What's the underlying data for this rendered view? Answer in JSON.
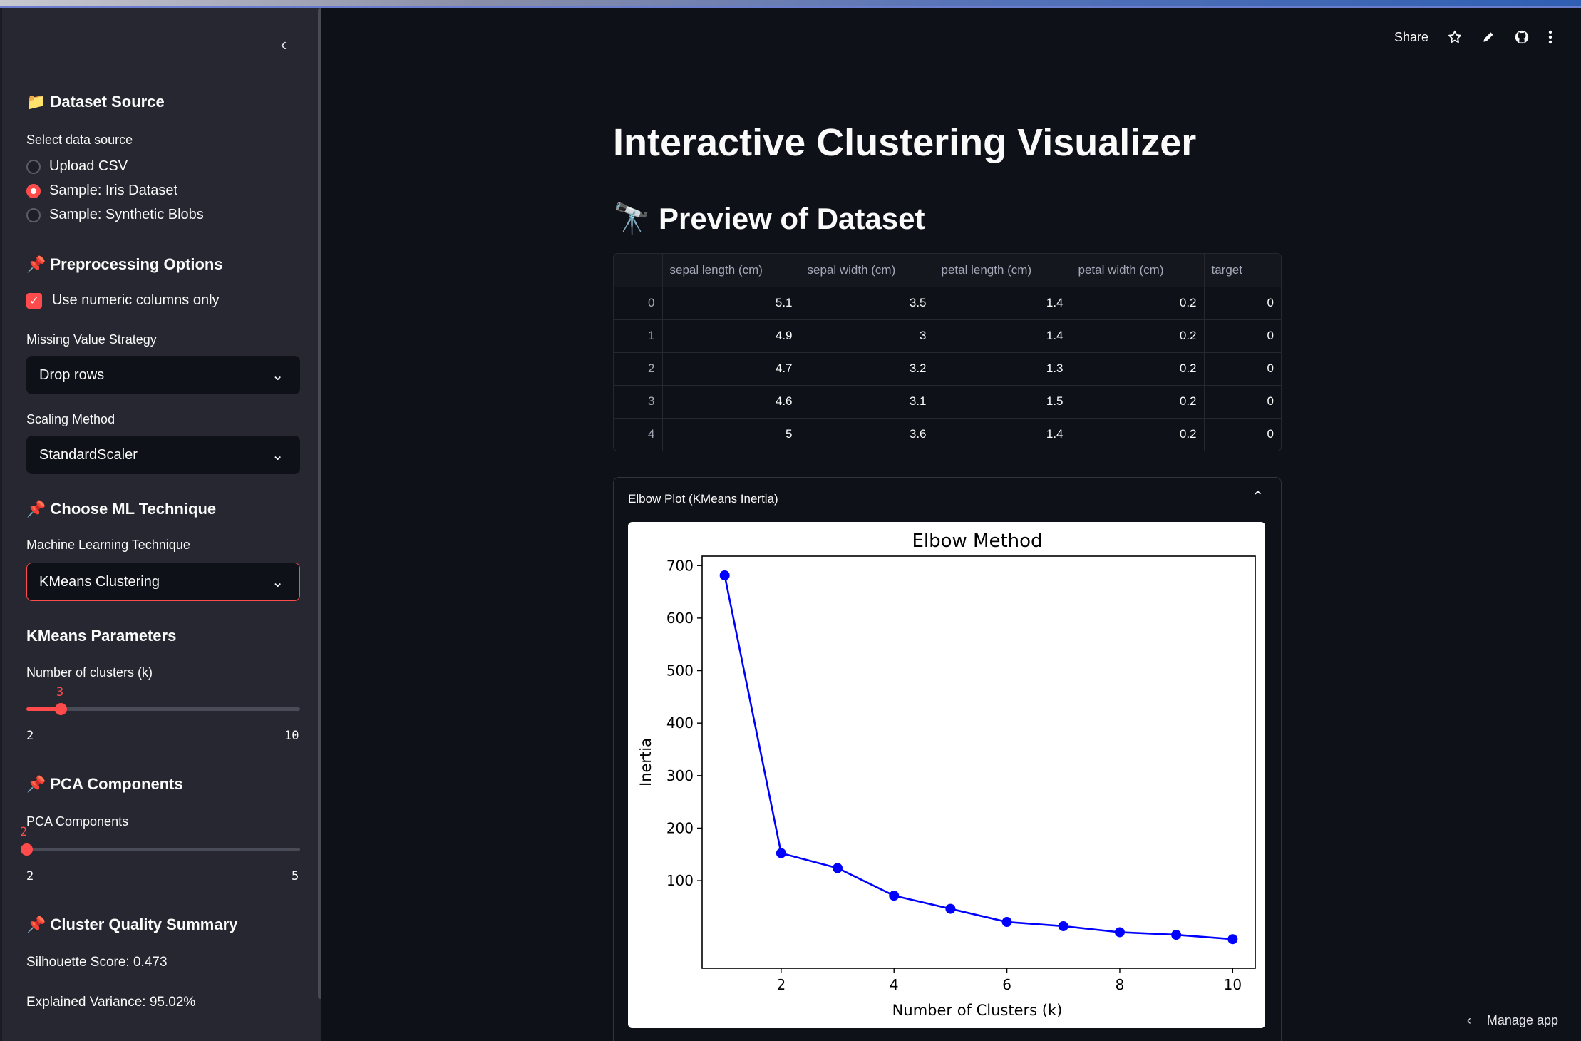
{
  "sidebar": {
    "dataset_heading": "📁 Dataset Source",
    "data_source_label": "Select data source",
    "data_source_options": [
      "Upload CSV",
      "Sample: Iris Dataset",
      "Sample: Synthetic Blobs"
    ],
    "data_source_selected": "Sample: Iris Dataset",
    "preprocessing_heading": "📌 Preprocessing Options",
    "numeric_only_label": "Use numeric columns only",
    "numeric_only_checked": true,
    "missing_label": "Missing Value Strategy",
    "missing_value": "Drop rows",
    "scaling_label": "Scaling Method",
    "scaling_value": "StandardScaler",
    "ml_heading": "📌 Choose ML Technique",
    "ml_label": "Machine Learning Technique",
    "ml_value": "KMeans Clustering",
    "kmeans_heading": "KMeans Parameters",
    "k_label": "Number of clusters (k)",
    "k_value": "3",
    "k_min": "2",
    "k_max": "10",
    "pca_heading": "📌 PCA Components",
    "pca_label": "PCA Components",
    "pca_value": "2",
    "pca_min": "2",
    "pca_max": "5",
    "quality_heading": "📌 Cluster Quality Summary",
    "silhouette": "Silhouette Score: 0.473",
    "variance": "Explained Variance: 95.02%"
  },
  "toolbar": {
    "share": "Share"
  },
  "main": {
    "title": "Interactive Clustering Visualizer",
    "preview_heading": "🔭 Preview of Dataset",
    "table": {
      "columns": [
        "",
        "sepal length (cm)",
        "sepal width (cm)",
        "petal length (cm)",
        "petal width (cm)",
        "target"
      ],
      "rows": [
        [
          "0",
          "5.1",
          "3.5",
          "1.4",
          "0.2",
          "0"
        ],
        [
          "1",
          "4.9",
          "3",
          "1.4",
          "0.2",
          "0"
        ],
        [
          "2",
          "4.7",
          "3.2",
          "1.3",
          "0.2",
          "0"
        ],
        [
          "3",
          "4.6",
          "3.1",
          "1.5",
          "0.2",
          "0"
        ],
        [
          "4",
          "5",
          "3.6",
          "1.4",
          "0.2",
          "0"
        ]
      ]
    },
    "expander_label": "Elbow Plot (KMeans Inertia)"
  },
  "footer": {
    "manage": "Manage app"
  },
  "colors": {
    "accent": "#ff4b4b",
    "line": "#0000ff",
    "bg": "#0e1117",
    "sidebar": "#262730"
  },
  "chart_data": {
    "type": "line",
    "title": "Elbow Method",
    "xlabel": "Number of Clusters (k)",
    "ylabel": "Inertia",
    "x": [
      1,
      2,
      3,
      4,
      5,
      6,
      7,
      8,
      9,
      10
    ],
    "series": [
      {
        "values": [
          681.4,
          152.3,
          123.9,
          71.4,
          46.4,
          21.3,
          13.3,
          1.7,
          -3.2,
          -11.5
        ]
      }
    ],
    "xticks": [
      2,
      4,
      6,
      8,
      10
    ],
    "yticks": [
      100,
      200,
      300,
      400,
      500,
      600,
      700
    ],
    "xlim": [
      0.6,
      10.4
    ],
    "ylim": [
      -66.9,
      718
    ],
    "grid": false
  }
}
